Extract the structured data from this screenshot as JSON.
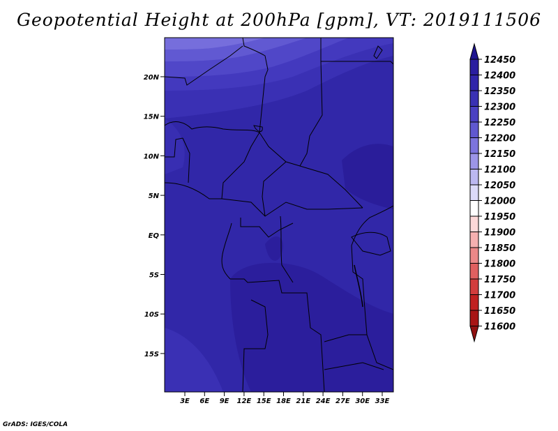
{
  "title": "Geopotential Height at 200hPa [gpm], VT: 2019111506",
  "credit": "GrADS: IGES/COLA",
  "map": {
    "lat_ticks": [
      "20N",
      "15N",
      "10N",
      "5N",
      "EQ",
      "5S",
      "10S",
      "15S"
    ],
    "lon_ticks": [
      "3E",
      "6E",
      "9E",
      "12E",
      "15E",
      "18E",
      "21E",
      "24E",
      "27E",
      "30E",
      "33E"
    ]
  },
  "colorbar": {
    "levels": [
      "12450",
      "12400",
      "12350",
      "12300",
      "12250",
      "12200",
      "12150",
      "12100",
      "12050",
      "12000",
      "11950",
      "11900",
      "11850",
      "11800",
      "11750",
      "11700",
      "11650",
      "11600"
    ],
    "colors": [
      "#1e1490",
      "#2a1ea0",
      "#3025aa",
      "#3a31b4",
      "#4a40c2",
      "#6058d0",
      "#7c74de",
      "#9c95e8",
      "#bcb8f0",
      "#dcdaf8",
      "#ffffff",
      "#fcd8d8",
      "#f5b0b0",
      "#ec8888",
      "#e06060",
      "#d23c3c",
      "#c02020",
      "#a81414",
      "#901010"
    ]
  },
  "colors": {
    "deep": "#2d1e9e",
    "mid": "#3a2eb4",
    "light": "#4b41c4",
    "lighter": "#6159d2",
    "lightest": "#7a72dc"
  }
}
